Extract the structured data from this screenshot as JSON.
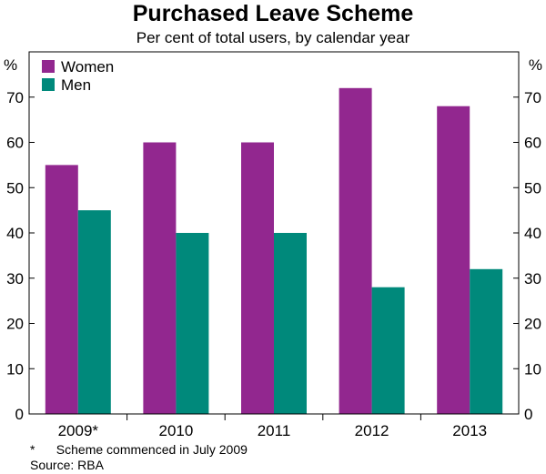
{
  "chart_data": {
    "type": "bar",
    "title": "Purchased Leave Scheme",
    "subtitle": "Per cent of total users, by calendar year",
    "ylabel_left": "%",
    "ylabel_right": "%",
    "xlabel": "",
    "categories": [
      "2009*",
      "2010",
      "2011",
      "2012",
      "2013"
    ],
    "series": [
      {
        "name": "Women",
        "color": "#92278f",
        "values": [
          55,
          60,
          60,
          72,
          68
        ]
      },
      {
        "name": "Men",
        "color": "#00897b",
        "values": [
          45,
          40,
          40,
          28,
          32
        ]
      }
    ],
    "ylim": [
      0,
      80
    ],
    "yticks": [
      0,
      10,
      20,
      30,
      40,
      50,
      60,
      70
    ],
    "ytick_labels": [
      "0",
      "10",
      "20",
      "30",
      "40",
      "50",
      "60",
      "70"
    ],
    "grid": false,
    "legend_position": "top-left",
    "footnote": "*      Scheme commenced in July 2009",
    "source": "Source: RBA"
  }
}
